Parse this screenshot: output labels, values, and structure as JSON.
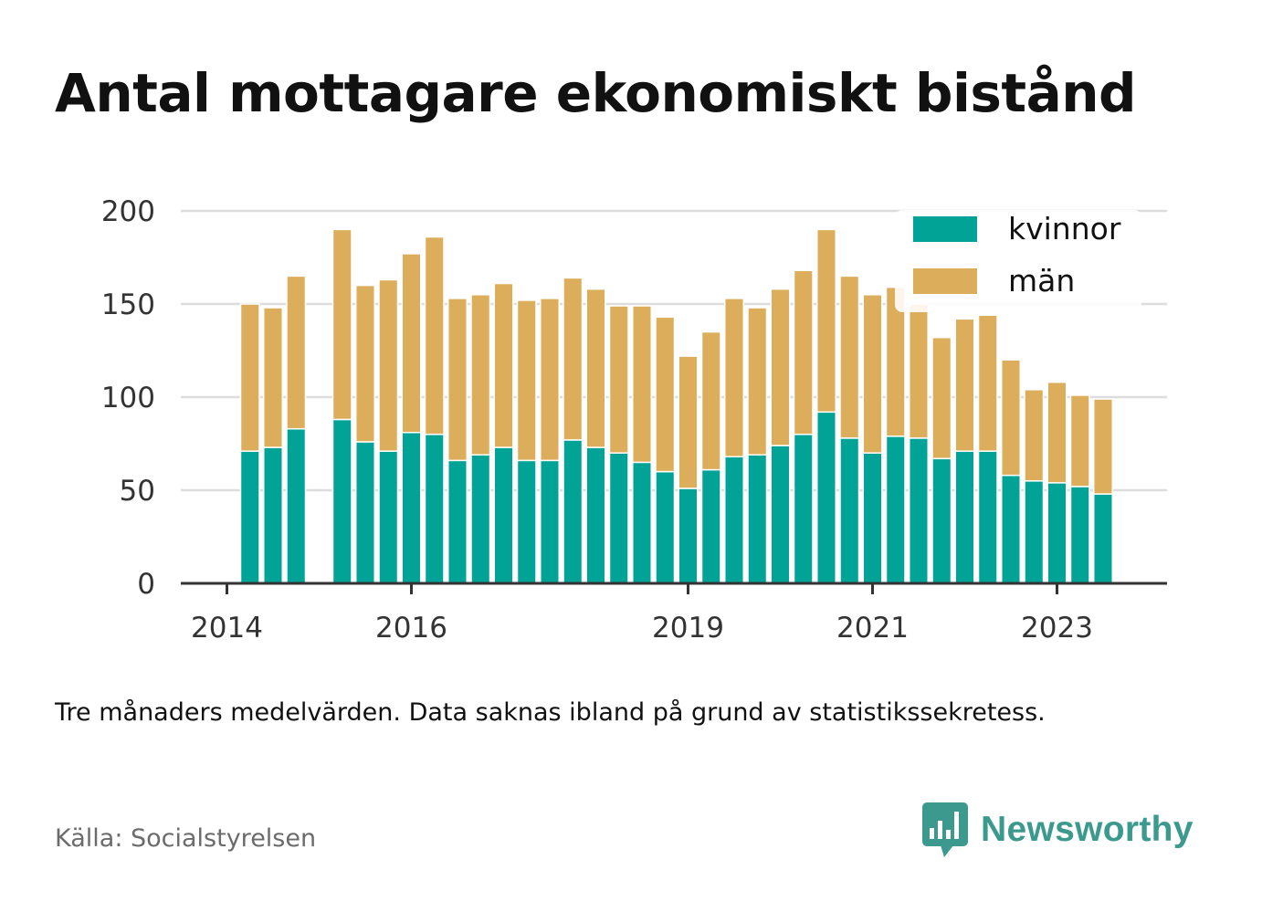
{
  "title": "Antal mottagare ekonomiskt bistånd",
  "note": "Tre månaders medelvärden. Data saknas ibland på grund av statistikssekretess.",
  "source": "Källa: Socialstyrelsen",
  "brand": {
    "name": "Newsworthy",
    "icon": "newsworthy-logo-icon",
    "color": "#3b9a8d"
  },
  "colors": {
    "kvinnor": "#00a396",
    "man": "#dcad5a",
    "grid": "#dddddd",
    "axis": "#333333"
  },
  "chart_data": {
    "type": "bar",
    "stacked": true,
    "ylim": [
      0,
      200
    ],
    "yticks": [
      0,
      50,
      100,
      150,
      200
    ],
    "xtick_labels": [
      {
        "label": "2014",
        "period": 0
      },
      {
        "label": "2016",
        "period": 8
      },
      {
        "label": "2019",
        "period": 20
      },
      {
        "label": "2021",
        "period": 28
      },
      {
        "label": "2023",
        "period": 36
      }
    ],
    "legend": {
      "position": "top-right",
      "entries": [
        "kvinnor",
        "män"
      ]
    },
    "grid": true,
    "periods": [
      0,
      1,
      2,
      3,
      4,
      5,
      6,
      7,
      8,
      9,
      10,
      11,
      12,
      13,
      14,
      15,
      16,
      17,
      18,
      19,
      20,
      21,
      22,
      23,
      24,
      25,
      26,
      27,
      28,
      29,
      30,
      31,
      32,
      33,
      34,
      35,
      36,
      37,
      38,
      39
    ],
    "series": [
      {
        "name": "kvinnor",
        "values": [
          null,
          71,
          73,
          83,
          null,
          88,
          76,
          71,
          81,
          80,
          66,
          69,
          73,
          66,
          66,
          77,
          73,
          70,
          65,
          60,
          51,
          61,
          68,
          69,
          74,
          80,
          92,
          78,
          70,
          79,
          78,
          67,
          71,
          71,
          58,
          55,
          54,
          52,
          48,
          null
        ]
      },
      {
        "name": "män",
        "values": [
          null,
          79,
          75,
          82,
          null,
          102,
          84,
          92,
          96,
          106,
          87,
          86,
          88,
          86,
          87,
          87,
          85,
          79,
          84,
          83,
          71,
          74,
          85,
          79,
          84,
          88,
          98,
          87,
          85,
          80,
          72,
          65,
          71,
          73,
          62,
          49,
          54,
          49,
          51,
          null
        ]
      }
    ]
  }
}
